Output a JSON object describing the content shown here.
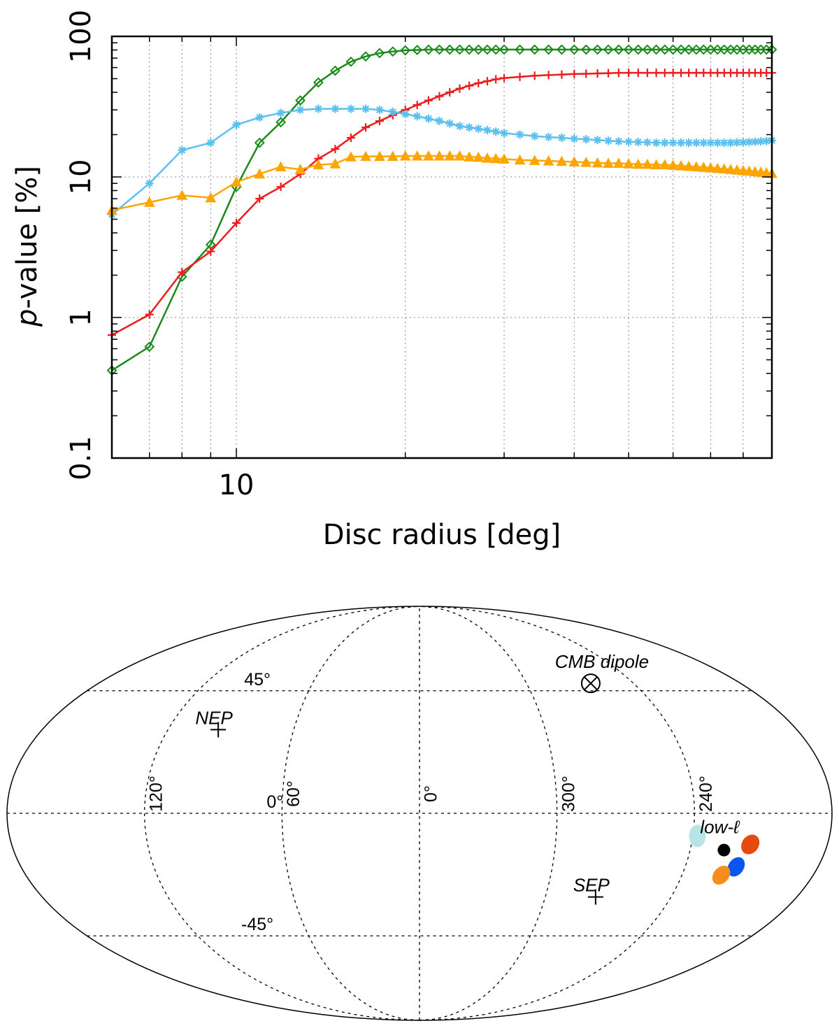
{
  "chart_data": [
    {
      "type": "line",
      "xscale": "log",
      "yscale": "log",
      "xlabel": "Disc radius [deg]",
      "ylabel_italic": "p",
      "ylabel_rest": "-value [%]",
      "xlim": [
        6,
        90
      ],
      "ylim": [
        0.1,
        100
      ],
      "xticks": [
        {
          "value": 10,
          "label": "10"
        }
      ],
      "yticks": [
        {
          "value": 0.1,
          "label": "0.1"
        },
        {
          "value": 1,
          "label": "1"
        },
        {
          "value": 10,
          "label": "10"
        },
        {
          "value": 100,
          "label": "100"
        }
      ],
      "grid": true,
      "series": [
        {
          "name": "green",
          "color": "#1a8a1a",
          "marker": "diamond",
          "x": [
            6,
            7,
            8,
            9,
            10,
            11,
            12,
            13,
            14,
            15,
            16,
            17,
            18,
            19,
            20,
            21,
            22,
            23,
            24,
            25,
            26,
            27,
            28,
            29,
            30,
            32,
            34,
            36,
            38,
            40,
            42,
            44,
            46,
            48,
            50,
            52,
            54,
            56,
            58,
            60,
            62,
            64,
            66,
            68,
            70,
            72,
            74,
            76,
            78,
            80,
            82,
            84,
            86,
            88,
            90
          ],
          "y": [
            0.42,
            0.62,
            1.95,
            3.3,
            8.5,
            17.5,
            24.5,
            35,
            47,
            57,
            66,
            72,
            76,
            78,
            79.5,
            80,
            80.5,
            80.5,
            80.5,
            80.5,
            80.5,
            80.5,
            80.5,
            80.5,
            80.5,
            80.5,
            80.5,
            80.5,
            80.5,
            80.5,
            80.5,
            80.5,
            80.5,
            80.5,
            80.5,
            80.5,
            80.5,
            80.5,
            80.5,
            80.5,
            80.5,
            80.5,
            80.5,
            80.5,
            80.5,
            80.5,
            80.5,
            80.5,
            80.5,
            80.5,
            80.5,
            80.5,
            80.5,
            80.5,
            80.5
          ]
        },
        {
          "name": "red",
          "color": "#ee1c1c",
          "marker": "plus",
          "x": [
            6,
            7,
            8,
            9,
            10,
            11,
            12,
            13,
            14,
            15,
            16,
            17,
            18,
            19,
            20,
            21,
            22,
            23,
            24,
            25,
            26,
            27,
            28,
            29,
            30,
            32,
            34,
            36,
            38,
            40,
            42,
            44,
            46,
            48,
            50,
            52,
            54,
            56,
            58,
            60,
            62,
            64,
            66,
            68,
            70,
            72,
            74,
            76,
            78,
            80,
            82,
            84,
            86,
            88,
            90
          ],
          "y": [
            0.75,
            1.05,
            2.1,
            2.95,
            4.7,
            7.0,
            8.5,
            10.5,
            13.5,
            15.8,
            19,
            22.5,
            25,
            27.5,
            30,
            32.5,
            35,
            37.5,
            40,
            42.5,
            44.5,
            46.5,
            48,
            49.5,
            50.5,
            51.5,
            52.5,
            53,
            53.5,
            54,
            54.2,
            54.5,
            54.7,
            55,
            55,
            55,
            55,
            55,
            55,
            55,
            55,
            55,
            55,
            55,
            55,
            55,
            55,
            55,
            55,
            55,
            55,
            55,
            55,
            55,
            55
          ]
        },
        {
          "name": "light-blue",
          "color": "#5bc0f0",
          "marker": "asterisk",
          "x": [
            6,
            7,
            8,
            9,
            10,
            11,
            12,
            13,
            14,
            15,
            16,
            17,
            18,
            19,
            20,
            21,
            22,
            23,
            24,
            25,
            26,
            27,
            28,
            29,
            30,
            32,
            34,
            36,
            38,
            40,
            42,
            44,
            46,
            48,
            50,
            52,
            54,
            56,
            58,
            60,
            62,
            64,
            66,
            68,
            70,
            72,
            74,
            76,
            78,
            80,
            82,
            84,
            86,
            88,
            90
          ],
          "y": [
            5.4,
            9.0,
            15.5,
            17.5,
            23.5,
            26.5,
            28.5,
            30,
            30.5,
            30.5,
            30.5,
            30.5,
            30,
            29,
            28,
            27,
            26,
            25,
            24,
            23,
            22.5,
            22,
            21.5,
            21,
            20.5,
            20,
            19.5,
            19.2,
            19,
            18.7,
            18.5,
            18.3,
            18.1,
            17.9,
            17.8,
            17.7,
            17.6,
            17.5,
            17.5,
            17.5,
            17.5,
            17.5,
            17.5,
            17.5,
            17.5,
            17.5,
            17.5,
            17.5,
            17.6,
            17.6,
            17.7,
            17.8,
            17.9,
            18,
            18.2
          ]
        },
        {
          "name": "orange",
          "color": "#ffa500",
          "marker": "triangle",
          "x": [
            6,
            7,
            8,
            9,
            10,
            11,
            12,
            13,
            14,
            15,
            16,
            17,
            18,
            19,
            20,
            21,
            22,
            23,
            24,
            25,
            26,
            27,
            28,
            29,
            30,
            32,
            34,
            36,
            38,
            40,
            42,
            44,
            46,
            48,
            50,
            52,
            54,
            56,
            58,
            60,
            62,
            64,
            66,
            68,
            70,
            72,
            74,
            76,
            78,
            80,
            82,
            84,
            86,
            88,
            90
          ],
          "y": [
            5.8,
            6.6,
            7.4,
            7.1,
            9.2,
            10.5,
            11.8,
            11.3,
            12.2,
            12.4,
            13.9,
            14,
            14,
            14,
            14.1,
            14.1,
            14.1,
            14.1,
            14.1,
            14.1,
            13.9,
            13.8,
            13.6,
            13.5,
            13.4,
            13.2,
            13.1,
            13,
            12.9,
            12.8,
            12.7,
            12.6,
            12.5,
            12.5,
            12.4,
            12.3,
            12.3,
            12.2,
            12.2,
            12.1,
            12.0,
            11.9,
            11.8,
            11.7,
            11.6,
            11.5,
            11.4,
            11.3,
            11.2,
            11.1,
            11.0,
            10.9,
            10.8,
            10.7,
            10.6
          ]
        }
      ]
    },
    {
      "type": "scatter",
      "projection": "mollweide",
      "longitude_labels": [
        "120°",
        "60°",
        "0°",
        "300°",
        "240°"
      ],
      "latitude_labels": [
        "45°",
        "0°",
        "-45°"
      ],
      "points": [
        {
          "name": "CMB dipole",
          "lon": 264,
          "lat": 48,
          "marker": "circle-cross",
          "label": "CMB dipole"
        },
        {
          "name": "NEP",
          "lon": 96,
          "lat": 30,
          "marker": "plus",
          "label": "NEP"
        },
        {
          "name": "SEP",
          "lon": 276,
          "lat": -30,
          "marker": "plus",
          "label": "SEP"
        }
      ],
      "low_l_label": "low-ℓ",
      "regions": [
        {
          "name": "light-blue",
          "lon": 238,
          "lat": -8,
          "color": "#b8e4e6"
        },
        {
          "name": "black",
          "lon": 225,
          "lat": -13,
          "color": "#000000"
        },
        {
          "name": "red-orange",
          "lon": 214,
          "lat": -11,
          "color": "#e64a10"
        },
        {
          "name": "blue",
          "lon": 217,
          "lat": -19,
          "color": "#0a55f0"
        },
        {
          "name": "orange",
          "lon": 222,
          "lat": -22,
          "color": "#f68c1e"
        }
      ]
    }
  ]
}
